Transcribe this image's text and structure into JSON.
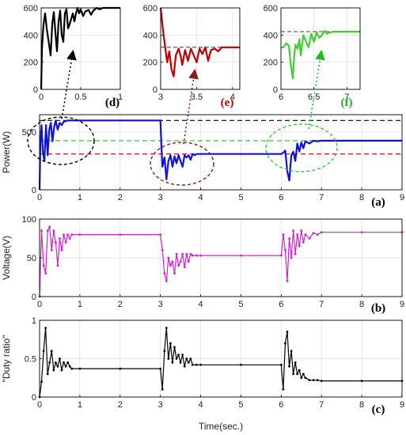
{
  "chart_data": [
    {
      "id": "d",
      "type": "line",
      "panel_label": "(d)",
      "label_color": "#000000",
      "xlim": [
        0,
        1
      ],
      "ylim": [
        0,
        600
      ],
      "xticks": [
        0,
        0.5,
        1
      ],
      "xtick_labels": [
        "0",
        "0.5",
        "1"
      ],
      "yticks": [
        0,
        200,
        400,
        600
      ],
      "ytick_labels": [
        "0",
        "200",
        "400",
        "600"
      ],
      "grid": true,
      "series_color": "#000000",
      "ref_lines": [
        600
      ],
      "x": [
        0,
        0.01,
        0.03,
        0.05,
        0.07,
        0.1,
        0.12,
        0.14,
        0.16,
        0.18,
        0.2,
        0.22,
        0.24,
        0.26,
        0.28,
        0.3,
        0.32,
        0.34,
        0.36,
        0.38,
        0.4,
        0.42,
        0.44,
        0.46,
        0.48,
        0.5,
        0.53,
        0.56,
        0.6,
        0.63,
        0.66,
        0.7,
        0.74,
        0.78,
        1.0
      ],
      "y": [
        0,
        300,
        480,
        560,
        450,
        330,
        250,
        480,
        570,
        420,
        280,
        500,
        580,
        400,
        350,
        560,
        590,
        450,
        480,
        520,
        560,
        500,
        560,
        600,
        560,
        590,
        540,
        575,
        585,
        550,
        580,
        600,
        590,
        600,
        600
      ]
    },
    {
      "id": "e",
      "type": "line",
      "panel_label": "(e)",
      "label_color": "#c00000",
      "xlim": [
        3,
        4.1
      ],
      "ylim": [
        0,
        600
      ],
      "xticks": [
        3,
        3.5,
        4
      ],
      "xtick_labels": [
        "3",
        "3.5",
        "4"
      ],
      "yticks": [
        0,
        200,
        400,
        600
      ],
      "ytick_labels": [
        "0",
        "200",
        "400",
        "600"
      ],
      "grid": true,
      "series_color": "#c00000",
      "ref_lines": [
        310
      ],
      "x": [
        3.0,
        3.03,
        3.06,
        3.09,
        3.12,
        3.15,
        3.18,
        3.21,
        3.25,
        3.28,
        3.3,
        3.34,
        3.38,
        3.42,
        3.46,
        3.5,
        3.54,
        3.58,
        3.62,
        3.66,
        3.7,
        3.75,
        3.8,
        3.85,
        3.9,
        4.1
      ],
      "y": [
        600,
        450,
        320,
        200,
        280,
        150,
        95,
        250,
        300,
        240,
        180,
        290,
        210,
        300,
        250,
        200,
        300,
        260,
        310,
        210,
        290,
        300,
        280,
        310,
        310,
        310
      ]
    },
    {
      "id": "f",
      "type": "line",
      "panel_label": "(f)",
      "label_color": "#22aa22",
      "xlim": [
        6,
        7.2
      ],
      "ylim": [
        0,
        600
      ],
      "xticks": [
        6,
        6.5,
        7
      ],
      "xtick_labels": [
        "6",
        "6.5",
        "7"
      ],
      "yticks": [
        0,
        200,
        400,
        600
      ],
      "ytick_labels": [
        "0",
        "200",
        "400",
        "600"
      ],
      "grid": true,
      "series_color": "#44cc33",
      "ref_lines": [
        425
      ],
      "x": [
        6.0,
        6.04,
        6.08,
        6.12,
        6.15,
        6.18,
        6.2,
        6.22,
        6.25,
        6.28,
        6.3,
        6.34,
        6.38,
        6.42,
        6.46,
        6.5,
        6.54,
        6.58,
        6.62,
        6.66,
        6.7,
        6.75,
        6.8,
        6.85,
        6.9,
        7.2
      ],
      "y": [
        310,
        310,
        340,
        320,
        180,
        80,
        250,
        330,
        300,
        370,
        250,
        400,
        350,
        310,
        410,
        350,
        420,
        380,
        400,
        430,
        410,
        420,
        425,
        425,
        425,
        425
      ]
    },
    {
      "id": "a",
      "type": "line",
      "panel_label": "(a)",
      "label_color": "#000000",
      "ylabel": "Power(W)",
      "xlim": [
        0,
        9
      ],
      "ylim": [
        0,
        650
      ],
      "xticks": [
        0,
        1,
        2,
        3,
        4,
        5,
        6,
        7,
        8,
        9
      ],
      "xtick_labels": [
        "0",
        "1",
        "2",
        "3",
        "4",
        "5",
        "6",
        "7",
        "8",
        "9"
      ],
      "yticks": [
        0,
        500
      ],
      "ytick_labels": [
        "0",
        "500"
      ],
      "grid": true,
      "series_color": "#1010e0",
      "ref_line_values": [
        600,
        425,
        310
      ],
      "ref_line_colors": [
        "#000000",
        "#33cc33",
        "#c00000"
      ],
      "x": [
        0,
        0.02,
        0.05,
        0.08,
        0.12,
        0.16,
        0.2,
        0.24,
        0.28,
        0.32,
        0.36,
        0.4,
        0.45,
        0.5,
        0.55,
        0.6,
        0.7,
        0.8,
        1.0,
        2.0,
        3.0,
        3.02,
        3.05,
        3.1,
        3.15,
        3.2,
        3.25,
        3.3,
        3.35,
        3.4,
        3.45,
        3.5,
        3.55,
        3.6,
        3.65,
        3.7,
        3.75,
        3.8,
        3.85,
        3.9,
        4.0,
        5.0,
        6.0,
        6.05,
        6.1,
        6.15,
        6.2,
        6.25,
        6.3,
        6.35,
        6.4,
        6.45,
        6.5,
        6.55,
        6.6,
        6.7,
        6.8,
        6.9,
        7.0,
        8.0,
        9.0
      ],
      "y": [
        0,
        400,
        560,
        330,
        250,
        560,
        300,
        520,
        580,
        420,
        540,
        600,
        520,
        580,
        560,
        590,
        600,
        600,
        600,
        600,
        600,
        420,
        200,
        280,
        90,
        250,
        300,
        200,
        290,
        230,
        300,
        250,
        200,
        300,
        280,
        300,
        260,
        310,
        300,
        310,
        310,
        310,
        310,
        320,
        340,
        160,
        80,
        300,
        330,
        250,
        400,
        330,
        410,
        360,
        420,
        400,
        425,
        420,
        425,
        425,
        425
      ]
    },
    {
      "id": "b",
      "type": "line",
      "panel_label": "(b)",
      "label_color": "#000000",
      "ylabel": "Voltage(V)",
      "xlim": [
        0,
        9
      ],
      "ylim": [
        0,
        100
      ],
      "xticks": [
        0,
        1,
        2,
        3,
        4,
        5,
        6,
        7,
        8,
        9
      ],
      "xtick_labels": [
        "0",
        "1",
        "2",
        "3",
        "4",
        "5",
        "6",
        "7",
        "8",
        "9"
      ],
      "yticks": [
        0,
        50,
        100
      ],
      "ytick_labels": [
        "0",
        "50",
        "100"
      ],
      "grid": true,
      "series_color": "#cc22cc",
      "x": [
        0,
        0.05,
        0.1,
        0.15,
        0.2,
        0.25,
        0.3,
        0.35,
        0.4,
        0.45,
        0.5,
        0.55,
        0.6,
        0.65,
        0.7,
        0.75,
        0.8,
        1.0,
        2.0,
        3.0,
        3.05,
        3.1,
        3.15,
        3.2,
        3.25,
        3.3,
        3.35,
        3.4,
        3.45,
        3.5,
        3.55,
        3.6,
        3.65,
        3.7,
        3.75,
        3.8,
        3.9,
        4.0,
        5.0,
        6.0,
        6.05,
        6.1,
        6.15,
        6.2,
        6.25,
        6.3,
        6.35,
        6.4,
        6.45,
        6.5,
        6.55,
        6.6,
        6.7,
        6.8,
        6.9,
        7.0,
        8.0,
        9.0
      ],
      "y": [
        0,
        85,
        40,
        30,
        85,
        90,
        60,
        85,
        70,
        40,
        75,
        60,
        80,
        70,
        80,
        75,
        80,
        80,
        80,
        80,
        60,
        30,
        20,
        50,
        40,
        45,
        30,
        55,
        40,
        45,
        55,
        38,
        55,
        45,
        55,
        53,
        53,
        53,
        53,
        53,
        80,
        60,
        20,
        75,
        50,
        85,
        55,
        80,
        65,
        85,
        70,
        80,
        75,
        82,
        80,
        83,
        83,
        83
      ]
    },
    {
      "id": "c",
      "type": "line",
      "panel_label": "(c)",
      "label_color": "#000000",
      "ylabel": "\"Duty ratio\"",
      "xlabel": "Time(sec.)",
      "xlim": [
        0,
        9
      ],
      "ylim": [
        0,
        1
      ],
      "xticks": [
        0,
        1,
        2,
        3,
        4,
        5,
        6,
        7,
        8,
        9
      ],
      "xtick_labels": [
        "0",
        "1",
        "2",
        "3",
        "4",
        "5",
        "6",
        "7",
        "8",
        "9"
      ],
      "yticks": [
        0,
        0.5,
        1
      ],
      "ytick_labels": [
        "0",
        "0.5",
        "1"
      ],
      "grid": true,
      "series_color": "#000000",
      "x": [
        0,
        0.05,
        0.1,
        0.15,
        0.2,
        0.25,
        0.3,
        0.35,
        0.4,
        0.45,
        0.5,
        0.55,
        0.6,
        0.65,
        0.7,
        0.75,
        0.8,
        1.0,
        2.0,
        3.0,
        3.05,
        3.1,
        3.15,
        3.2,
        3.25,
        3.3,
        3.35,
        3.4,
        3.45,
        3.5,
        3.55,
        3.6,
        3.65,
        3.7,
        3.75,
        3.8,
        3.9,
        4.0,
        5.0,
        6.0,
        6.05,
        6.1,
        6.15,
        6.2,
        6.25,
        6.3,
        6.35,
        6.4,
        6.45,
        6.5,
        6.55,
        6.6,
        6.7,
        6.8,
        6.9,
        7.0,
        8.0,
        9.0
      ],
      "y": [
        0,
        0.2,
        0.6,
        0.9,
        0.3,
        0.45,
        0.6,
        0.35,
        0.45,
        0.4,
        0.5,
        0.35,
        0.45,
        0.4,
        0.45,
        0.4,
        0.37,
        0.37,
        0.37,
        0.37,
        0.1,
        0.6,
        0.9,
        0.5,
        0.7,
        0.45,
        0.65,
        0.5,
        0.55,
        0.45,
        0.55,
        0.4,
        0.5,
        0.45,
        0.5,
        0.42,
        0.42,
        0.42,
        0.42,
        0.42,
        0.1,
        0.7,
        0.85,
        0.4,
        0.6,
        0.3,
        0.45,
        0.3,
        0.35,
        0.25,
        0.3,
        0.25,
        0.22,
        0.22,
        0.22,
        0.21,
        0.21,
        0.21
      ]
    }
  ]
}
